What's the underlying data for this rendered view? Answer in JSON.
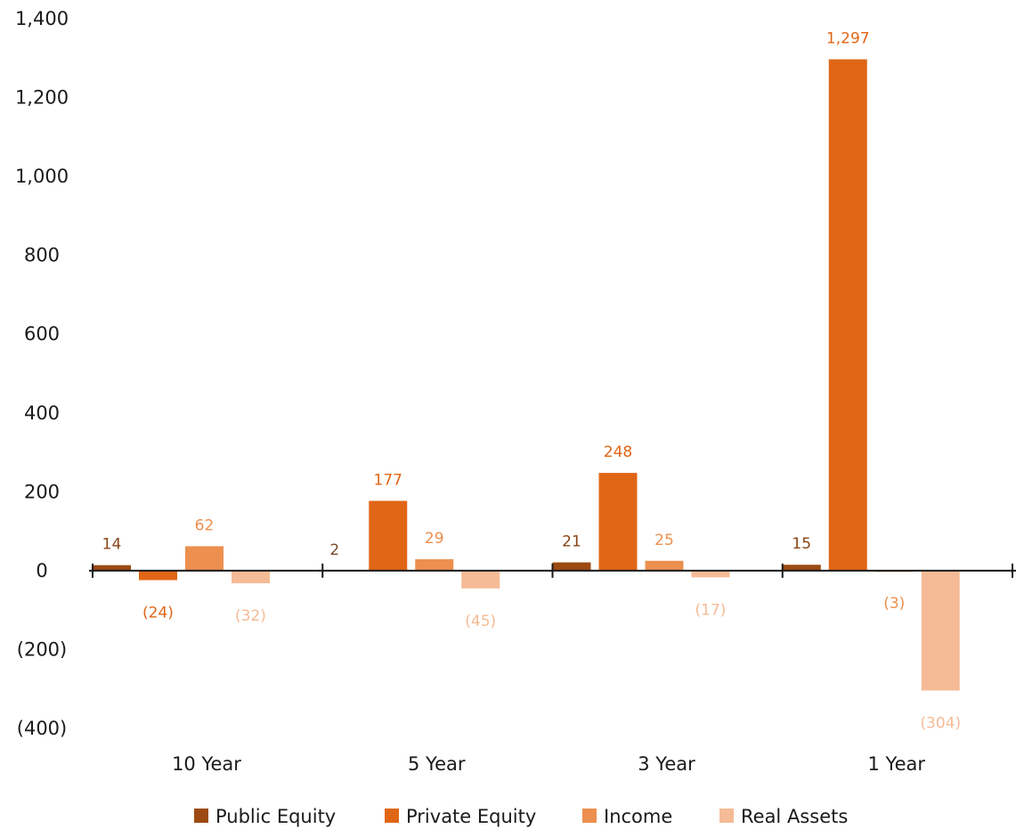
{
  "chart_data": {
    "type": "bar",
    "categories": [
      "10 Year",
      "5 Year",
      "3 Year",
      "1 Year"
    ],
    "series": [
      {
        "name": "Public Equity",
        "color": "#9c4a12",
        "values": [
          14,
          2,
          21,
          15
        ],
        "labels": [
          "14",
          "2",
          "21",
          "15"
        ]
      },
      {
        "name": "Private Equity",
        "color": "#e06616",
        "values": [
          -24,
          177,
          248,
          1297
        ],
        "labels": [
          "(24)",
          "177",
          "248",
          "1,297"
        ]
      },
      {
        "name": "Income",
        "color": "#ec8f4f",
        "values": [
          62,
          29,
          25,
          -3
        ],
        "labels": [
          "62",
          "29",
          "25",
          "(3)"
        ]
      },
      {
        "name": "Real Assets",
        "color": "#f5bb96",
        "values": [
          -32,
          -45,
          -17,
          -304
        ],
        "labels": [
          "(32)",
          "(45)",
          "(17)",
          "(304)"
        ]
      }
    ],
    "y_ticks": [
      1400,
      1200,
      1000,
      800,
      600,
      400,
      200,
      0,
      -200,
      -400
    ],
    "y_tick_labels": [
      "1,400",
      "1,200",
      "1,000",
      "800",
      "600",
      "400",
      "200",
      "0",
      "(200)",
      "(400)"
    ],
    "ylim": [
      -400,
      1400
    ],
    "grid": false,
    "legend_position": "bottom"
  }
}
